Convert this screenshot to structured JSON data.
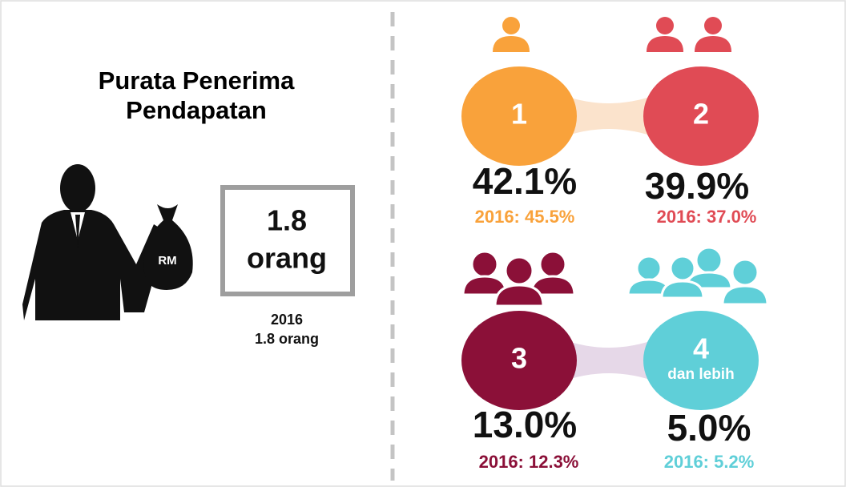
{
  "title": {
    "lines": [
      "Purata Penerima",
      "Pendapatan"
    ]
  },
  "icon": {
    "bag_label": "RM"
  },
  "highlight": {
    "value": "1.8",
    "unit": "orang"
  },
  "previous": {
    "year": "2016",
    "value": "1.8 orang"
  },
  "groups": [
    {
      "label": "1",
      "share": "42.1%",
      "previous": "2016: 45.5%"
    },
    {
      "label": "2",
      "share": "39.9%",
      "previous": "2016: 37.0%"
    },
    {
      "label": "3",
      "share": "13.0%",
      "previous": "2016: 12.3%"
    },
    {
      "label": "4",
      "sublabel": "dan lebih",
      "share": "5.0%",
      "previous": "2016: 5.2%"
    }
  ]
}
